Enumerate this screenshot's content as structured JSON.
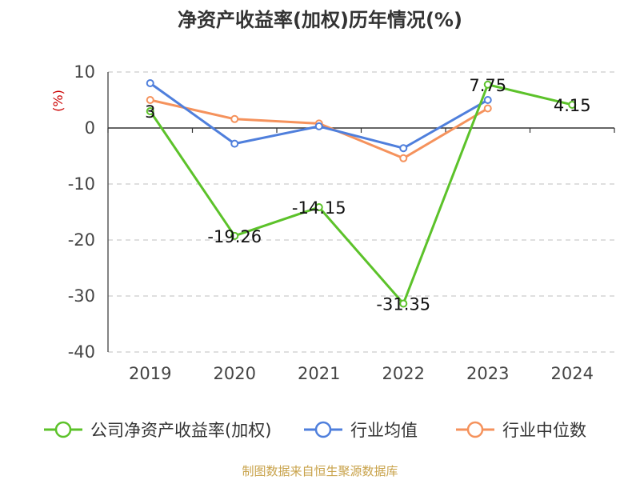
{
  "chart_data": {
    "type": "line",
    "title": "净资产收益率(加权)历年情况(%)",
    "ylabel": "(%)",
    "xlabel": "",
    "categories": [
      "2019",
      "2020",
      "2021",
      "2022",
      "2023",
      "2024"
    ],
    "ylim": [
      -40,
      10
    ],
    "yticks": [
      10,
      0,
      -10,
      -20,
      -30,
      -40
    ],
    "grid": true,
    "legend_position": "bottom",
    "series": [
      {
        "name": "公司净资产收益率(加权)",
        "color": "#5cc22a",
        "values": [
          3,
          -19.26,
          -14.15,
          -31.35,
          7.75,
          4.15
        ],
        "labels": [
          "3",
          "-19.26",
          "-14.15",
          "-31.35",
          "7.75",
          "4.15"
        ]
      },
      {
        "name": "行业均值",
        "color": "#4f7fdc",
        "values": [
          8,
          -2.8,
          0.3,
          -3.6,
          5,
          null
        ]
      },
      {
        "name": "行业中位数",
        "color": "#f5925c",
        "values": [
          5,
          1.6,
          0.8,
          -5.4,
          3.5,
          null
        ]
      }
    ]
  },
  "footer": {
    "source": "制图数据来自恒生聚源数据库"
  }
}
